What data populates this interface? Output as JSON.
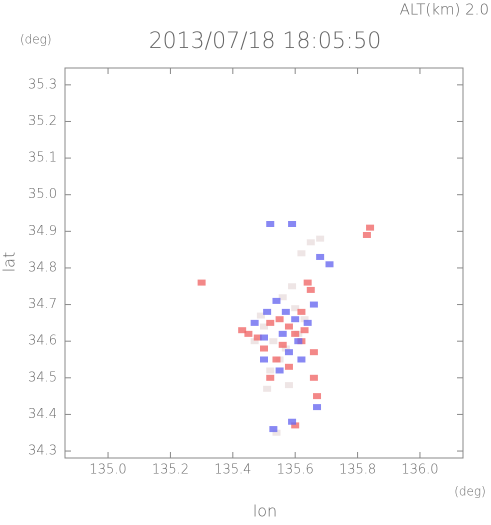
{
  "chart_data": {
    "type": "scatter",
    "title": "2013/07/18 18:05:50",
    "annotation": "ALT(km)  2.0",
    "y_unit": "(deg)",
    "x_unit": "(deg)",
    "x_label": "lon",
    "y_label": "lat",
    "xlim": [
      134.862,
      136.138
    ],
    "ylim": [
      34.281,
      35.346
    ],
    "xticks": [
      {
        "value": 135.0,
        "label": "135.0"
      },
      135.2,
      135.4,
      135.6,
      135.8,
      {
        "value": 136.0,
        "label": "136.0"
      }
    ],
    "yticks": [
      34.3,
      34.4,
      34.5,
      34.6,
      34.7,
      34.8,
      34.9,
      {
        "value": 35.0,
        "label": "35.0"
      },
      35.1,
      35.2,
      35.3
    ],
    "series": [
      {
        "color": "#eadede",
        "x": [
          135.5,
          135.53,
          135.57,
          135.6,
          135.63,
          135.55,
          135.52,
          135.58,
          135.61,
          135.47,
          135.49,
          135.65,
          135.62,
          135.56,
          135.68,
          135.54,
          135.51,
          135.59
        ],
        "y": [
          34.64,
          34.6,
          34.58,
          34.69,
          34.66,
          34.55,
          34.52,
          34.48,
          34.62,
          34.6,
          34.67,
          34.87,
          34.84,
          34.72,
          34.88,
          34.35,
          34.47,
          34.75
        ]
      },
      {
        "color": "#f06a6a",
        "x": [
          135.84,
          135.83,
          135.3,
          135.43,
          135.45,
          135.52,
          135.55,
          135.58,
          135.6,
          135.62,
          135.56,
          135.54,
          135.58,
          135.66,
          135.67,
          135.64,
          135.65,
          135.6,
          135.52,
          135.62,
          135.5,
          135.48,
          135.66,
          135.63
        ],
        "y": [
          34.91,
          34.89,
          34.76,
          34.63,
          34.62,
          34.65,
          34.66,
          34.64,
          34.62,
          34.6,
          34.59,
          34.55,
          34.53,
          34.5,
          34.45,
          34.76,
          34.74,
          34.37,
          34.5,
          34.68,
          34.58,
          34.61,
          34.57,
          34.63
        ]
      },
      {
        "color": "#6a6af0",
        "x": [
          135.52,
          135.59,
          135.68,
          135.71,
          135.47,
          135.5,
          135.51,
          135.54,
          135.57,
          135.6,
          135.64,
          135.58,
          135.56,
          135.62,
          135.67,
          135.59,
          135.53,
          135.66,
          135.5,
          135.61,
          135.55
        ],
        "y": [
          34.92,
          34.92,
          34.83,
          34.81,
          34.65,
          34.61,
          34.68,
          34.71,
          34.68,
          34.66,
          34.65,
          34.57,
          34.62,
          34.55,
          34.42,
          34.38,
          34.36,
          34.7,
          34.55,
          34.6,
          34.52
        ]
      }
    ]
  }
}
